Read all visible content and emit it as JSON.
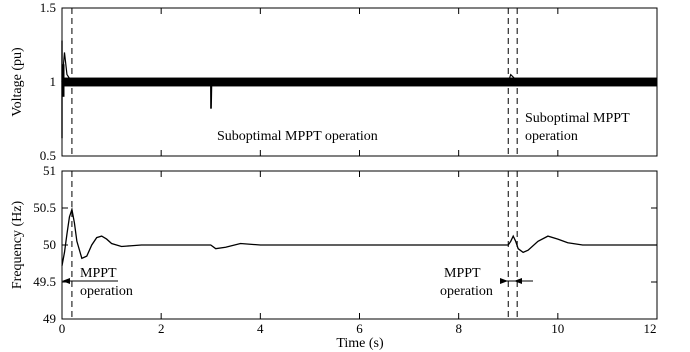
{
  "chart_data": [
    {
      "type": "line",
      "xlim": [
        0,
        12
      ],
      "ylim": [
        0.5,
        1.5
      ],
      "ylabel": "Voltage (pu)",
      "yticks": [
        "0.5",
        "1",
        "1.5"
      ],
      "grid": false,
      "series": [
        {
          "description_values": "dense oscillation band around 1.0 pu",
          "x": [
            0,
            0.05,
            0.1,
            0.2,
            0.5,
            1,
            2,
            3,
            3.01,
            3.02,
            4,
            6,
            8,
            9,
            9.05,
            9.2,
            10,
            11,
            12
          ],
          "y_center": [
            1.0,
            1.2,
            1.05,
            1.0,
            1.0,
            1.0,
            1.0,
            1.0,
            0.82,
            1.0,
            1.0,
            1.0,
            1.0,
            1.0,
            1.05,
            1.0,
            1.0,
            1.0,
            1.0
          ],
          "band_amplitude": 0.03
        }
      ],
      "vlines": [
        0.2,
        9.0,
        9.18
      ],
      "annotations": [
        "Suboptimal MPPT operation",
        "Suboptimal MPPT",
        "operation"
      ]
    },
    {
      "type": "line",
      "xlim": [
        0,
        12
      ],
      "ylim": [
        49,
        51
      ],
      "xlabel": "Time (s)",
      "ylabel": "Frequency (Hz)",
      "xticks": [
        "0",
        "2",
        "4",
        "6",
        "8",
        "10",
        "12"
      ],
      "yticks": [
        "49",
        "49.5",
        "50",
        "50.5",
        "51"
      ],
      "grid": false,
      "series": [
        {
          "x": [
            0,
            0.05,
            0.1,
            0.15,
            0.2,
            0.25,
            0.3,
            0.4,
            0.5,
            0.6,
            0.7,
            0.8,
            0.9,
            1.0,
            1.2,
            1.4,
            1.6,
            1.8,
            2.0,
            3.0,
            3.1,
            3.3,
            3.6,
            4.0,
            6.0,
            8.0,
            9.0,
            9.05,
            9.1,
            9.15,
            9.2,
            9.3,
            9.4,
            9.6,
            9.8,
            10.0,
            10.2,
            10.5,
            11.0,
            12.0
          ],
          "y": [
            49.72,
            49.9,
            50.15,
            50.38,
            50.48,
            50.3,
            50.05,
            49.82,
            49.85,
            50.0,
            50.1,
            50.12,
            50.08,
            50.02,
            49.98,
            49.99,
            50.0,
            50.0,
            50.0,
            50.0,
            49.95,
            49.97,
            50.02,
            50.0,
            50.0,
            50.0,
            50.0,
            50.05,
            50.12,
            50.05,
            49.95,
            49.9,
            49.93,
            50.05,
            50.12,
            50.08,
            50.03,
            50.0,
            50.0,
            50.0
          ]
        }
      ],
      "vlines": [
        0.2,
        9.0,
        9.18
      ],
      "annotations": [
        "MPPT",
        "operation",
        "MPPT",
        "operation"
      ]
    }
  ],
  "top": {
    "yticks": [
      "1.5",
      "1",
      "0.5"
    ],
    "ylabel": "Voltage (pu)",
    "annot_mid": "Suboptimal MPPT operation",
    "annot_right_1": "Suboptimal MPPT",
    "annot_right_2": "operation"
  },
  "bottom": {
    "yticks": [
      "51",
      "50.5",
      "50",
      "49.5",
      "49"
    ],
    "ylabel": "Frequency (Hz)",
    "xticks": [
      "0",
      "2",
      "4",
      "6",
      "8",
      "10",
      "12"
    ],
    "xlabel": "Time (s)",
    "annot_left_1": "MPPT",
    "annot_left_2": "operation",
    "annot_right_1": "MPPT",
    "annot_right_2": "operation"
  }
}
